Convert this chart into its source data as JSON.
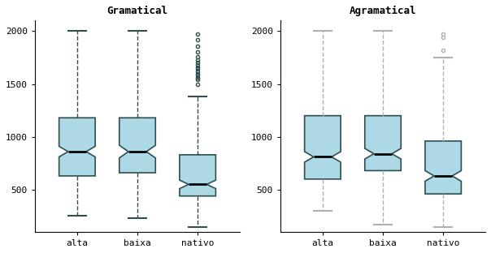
{
  "title_left": "Gramatical",
  "title_right": "Agramatical",
  "categories": [
    "alta",
    "baixa",
    "nativo"
  ],
  "ylim": [
    100,
    2100
  ],
  "yticks": [
    500,
    1000,
    1500,
    2000
  ],
  "box_color": "#add8e6",
  "box_edge_color": "#2f4f4f",
  "median_color": "black",
  "whisker_color_left": "#2f4f4f",
  "whisker_color_right": "#b0b0b0",
  "flier_color_left": "#2f4f4f",
  "flier_color_right": "#b0b0b0",
  "gram": {
    "alta": {
      "q1": 630,
      "q2": 860,
      "q3": 1180,
      "whislo": 250,
      "whishi": 2000,
      "fliers": [],
      "cilo": 810,
      "cihi": 910
    },
    "baixa": {
      "q1": 660,
      "q2": 860,
      "q3": 1180,
      "whislo": 230,
      "whishi": 2000,
      "fliers": [],
      "cilo": 800,
      "cihi": 920
    },
    "nativo": {
      "q1": 440,
      "q2": 550,
      "q3": 830,
      "whislo": 150,
      "whishi": 1380,
      "fliers": [
        1500,
        1540,
        1560,
        1580,
        1600,
        1620,
        1640,
        1660,
        1680,
        1700,
        1730,
        1760,
        1800,
        1860,
        1920,
        1970
      ],
      "cilo": 510,
      "cihi": 590
    }
  },
  "agram": {
    "alta": {
      "q1": 600,
      "q2": 810,
      "q3": 1200,
      "whislo": 300,
      "whishi": 2000,
      "fliers": [],
      "cilo": 760,
      "cihi": 860
    },
    "baixa": {
      "q1": 680,
      "q2": 840,
      "q3": 1200,
      "whislo": 170,
      "whishi": 2000,
      "fliers": [],
      "cilo": 790,
      "cihi": 890
    },
    "nativo": {
      "q1": 460,
      "q2": 630,
      "q3": 960,
      "whislo": 150,
      "whishi": 1750,
      "fliers": [
        1820,
        1940,
        1970
      ],
      "cilo": 580,
      "cihi": 680
    }
  }
}
